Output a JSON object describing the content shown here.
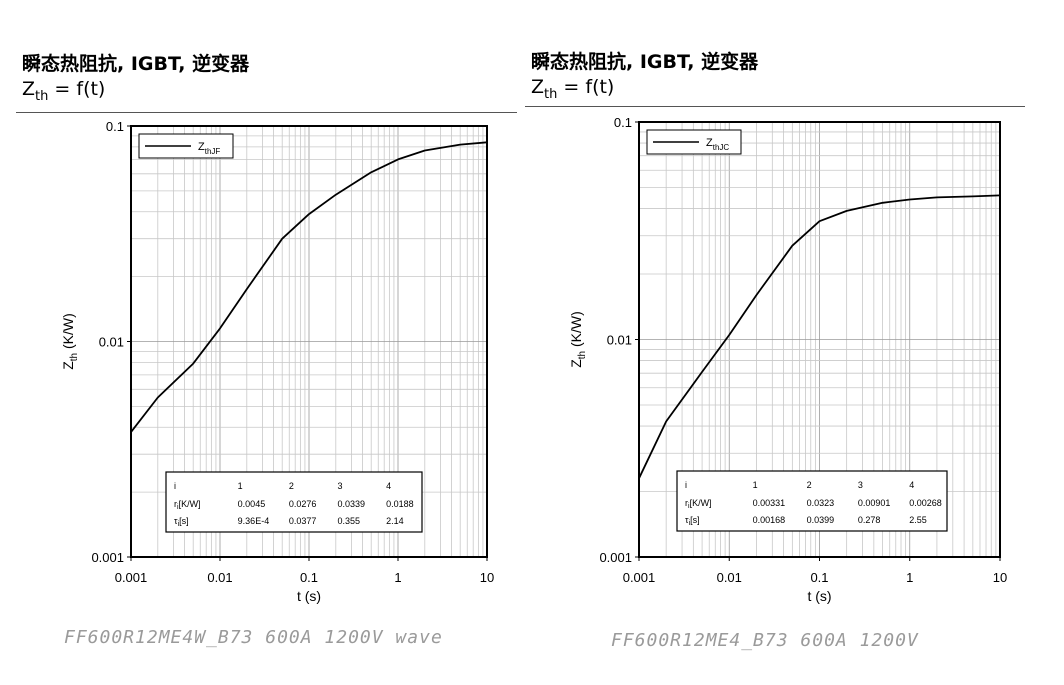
{
  "panels": [
    {
      "title": "瞬态热阻抗, IGBT, 逆变器",
      "subtitle_main": "Z",
      "subtitle_sub": "th",
      "subtitle_rest": " = f(t)",
      "caption": "FF600R12ME4W_B73 600A 1200V wave"
    },
    {
      "title": "瞬态热阻抗, IGBT, 逆变器",
      "subtitle_main": "Z",
      "subtitle_sub": "th",
      "subtitle_rest": " = f(t)",
      "caption": "FF600R12ME4_B73 600A 1200V"
    }
  ],
  "chart_data": [
    {
      "type": "line",
      "xscale": "log",
      "yscale": "log",
      "xlim": [
        0.001,
        10
      ],
      "ylim": [
        0.001,
        0.1
      ],
      "xlabel": "t (s)",
      "ylabel_main": "Z",
      "ylabel_sub": "th",
      "ylabel_rest": " (K/W)",
      "x_ticks": [
        "0.001",
        "0.01",
        "0.1",
        "1",
        "10"
      ],
      "y_ticks": [
        "0.001",
        "0.01",
        "0.1"
      ],
      "legend": "top-left",
      "series": [
        {
          "name_main": "Z",
          "name_sub": "thJF",
          "x": [
            0.001,
            0.002,
            0.005,
            0.01,
            0.02,
            0.05,
            0.1,
            0.2,
            0.5,
            1,
            2,
            5,
            10
          ],
          "y": [
            0.0038,
            0.0055,
            0.0079,
            0.0115,
            0.0175,
            0.03,
            0.039,
            0.048,
            0.061,
            0.07,
            0.077,
            0.082,
            0.084
          ]
        }
      ],
      "table": {
        "header": [
          "i",
          "1",
          "2",
          "3",
          "4"
        ],
        "rows": [
          {
            "label_main": "r",
            "label_sub": "i",
            "label_rest": "[K/W]",
            "values": [
              "0.0045",
              "0.0276",
              "0.0339",
              "0.0188"
            ]
          },
          {
            "label_main": "τ",
            "label_sub": "i",
            "label_rest": "[s]",
            "values": [
              "9.36E-4",
              "0.0377",
              "0.355",
              "2.14"
            ]
          }
        ]
      }
    },
    {
      "type": "line",
      "xscale": "log",
      "yscale": "log",
      "xlim": [
        0.001,
        10
      ],
      "ylim": [
        0.001,
        0.1
      ],
      "xlabel": "t (s)",
      "ylabel_main": "Z",
      "ylabel_sub": "th",
      "ylabel_rest": " (K/W)",
      "x_ticks": [
        "0.001",
        "0.01",
        "0.1",
        "1",
        "10"
      ],
      "y_ticks": [
        "0.001",
        "0.01",
        "0.1"
      ],
      "legend": "top-left",
      "series": [
        {
          "name_main": "Z",
          "name_sub": "thJC",
          "x": [
            0.001,
            0.002,
            0.005,
            0.01,
            0.02,
            0.05,
            0.1,
            0.2,
            0.5,
            1,
            2,
            5,
            10
          ],
          "y": [
            0.0023,
            0.0042,
            0.0071,
            0.0105,
            0.016,
            0.027,
            0.035,
            0.039,
            0.0425,
            0.044,
            0.045,
            0.0455,
            0.046
          ]
        }
      ],
      "table": {
        "header": [
          "i",
          "1",
          "2",
          "3",
          "4"
        ],
        "rows": [
          {
            "label_main": "r",
            "label_sub": "i",
            "label_rest": "[K/W]",
            "values": [
              "0.00331",
              "0.0323",
              "0.00901",
              "0.00268"
            ]
          },
          {
            "label_main": "τ",
            "label_sub": "i",
            "label_rest": "[s]",
            "values": [
              "0.00168",
              "0.0399",
              "0.278",
              "2.55"
            ]
          }
        ]
      }
    }
  ]
}
